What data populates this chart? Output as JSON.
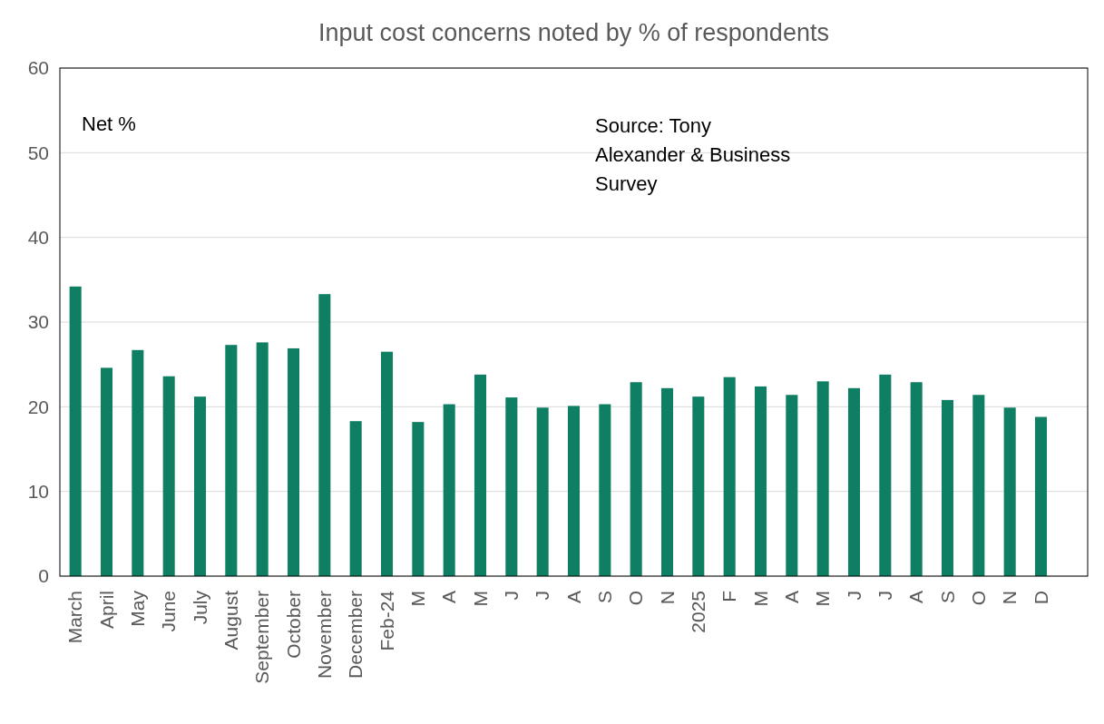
{
  "chart_data": {
    "type": "bar",
    "title": "Input cost concerns noted by % of respondents",
    "categories": [
      "March",
      "April",
      "May",
      "June",
      "July",
      "August",
      "September",
      "October",
      "November",
      "December",
      "Feb-24",
      "M",
      "A",
      "M",
      "J",
      "J",
      "A",
      "S",
      "O",
      "N",
      "2025",
      "F",
      "M",
      "A",
      "M",
      "J",
      "J",
      "A",
      "S",
      "O",
      "N",
      "D",
      null
    ],
    "values": [
      34.2,
      24.6,
      26.7,
      23.6,
      21.2,
      27.3,
      27.6,
      26.9,
      33.3,
      18.3,
      26.5,
      18.2,
      20.3,
      23.8,
      21.1,
      19.9,
      20.1,
      20.3,
      22.9,
      22.2,
      21.2,
      23.5,
      22.4,
      21.4,
      23.0,
      22.2,
      23.8,
      22.9,
      20.8,
      21.4,
      19.9,
      18.8,
      null
    ],
    "color": "#0f7f63",
    "ylim": [
      0,
      60
    ],
    "yticks": [
      0,
      10,
      20,
      30,
      40,
      50,
      60
    ],
    "grid": "y",
    "annotations": [
      "Net %",
      "Source: Tony Alexander & Business Survey"
    ]
  }
}
